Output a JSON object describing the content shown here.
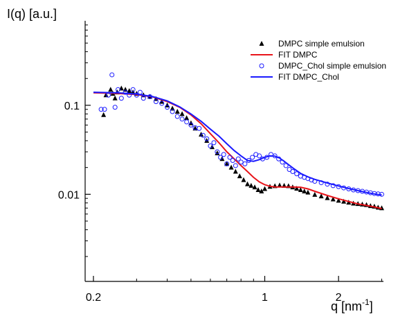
{
  "chart_data": {
    "type": "scatter",
    "title": "",
    "ylabel": "I(q) [a.u.]",
    "xlabel_main": "q [nm",
    "xlabel_exp": "-1",
    "xlabel_close": "]",
    "xscale": "log",
    "yscale": "log",
    "xlim": [
      0.185,
      3.05
    ],
    "ylim": [
      0.00105,
      0.89
    ],
    "grid": false,
    "legend_position": "top-right",
    "x_ticks": [
      {
        "value": 0.2,
        "label": "0.2"
      },
      {
        "value": 1,
        "label": "1"
      },
      {
        "value": 2,
        "label": "2"
      }
    ],
    "y_ticks": [
      {
        "value": 0.1,
        "label": "0.1"
      },
      {
        "value": 0.01,
        "label": "0.01"
      }
    ],
    "series": [
      {
        "name": "DMPC simple emulsion",
        "kind": "markers",
        "marker": "triangle",
        "color": "#000000",
        "x": [
          0.22,
          0.225,
          0.235,
          0.24,
          0.245,
          0.25,
          0.26,
          0.27,
          0.28,
          0.29,
          0.3,
          0.32,
          0.34,
          0.36,
          0.38,
          0.4,
          0.42,
          0.44,
          0.46,
          0.48,
          0.5,
          0.52,
          0.55,
          0.58,
          0.61,
          0.64,
          0.67,
          0.7,
          0.73,
          0.76,
          0.79,
          0.82,
          0.85,
          0.88,
          0.91,
          0.94,
          0.97,
          1.0,
          1.05,
          1.1,
          1.15,
          1.2,
          1.25,
          1.3,
          1.35,
          1.4,
          1.45,
          1.5,
          1.6,
          1.7,
          1.8,
          1.9,
          2.0,
          2.1,
          2.2,
          2.3,
          2.4,
          2.5,
          2.6,
          2.7,
          2.8,
          2.9,
          3.0
        ],
        "y": [
          0.078,
          0.13,
          0.15,
          0.135,
          0.12,
          0.14,
          0.155,
          0.15,
          0.145,
          0.14,
          0.135,
          0.13,
          0.125,
          0.118,
          0.11,
          0.1,
          0.092,
          0.085,
          0.08,
          0.072,
          0.063,
          0.055,
          0.047,
          0.04,
          0.034,
          0.029,
          0.025,
          0.022,
          0.02,
          0.018,
          0.016,
          0.0145,
          0.013,
          0.0125,
          0.012,
          0.0112,
          0.0108,
          0.0115,
          0.0122,
          0.0124,
          0.0126,
          0.0125,
          0.0124,
          0.012,
          0.0116,
          0.0112,
          0.0108,
          0.0105,
          0.0099,
          0.0095,
          0.0091,
          0.0088,
          0.0085,
          0.0083,
          0.0081,
          0.0079,
          0.0078,
          0.0077,
          0.0076,
          0.0074,
          0.0073,
          0.0071,
          0.007
        ]
      },
      {
        "name": "FIT DMPC",
        "kind": "line",
        "color": "#e8141a",
        "x": [
          0.2,
          0.25,
          0.3,
          0.35,
          0.4,
          0.45,
          0.5,
          0.55,
          0.6,
          0.65,
          0.7,
          0.75,
          0.8,
          0.85,
          0.9,
          0.95,
          1.0,
          1.05,
          1.1,
          1.2,
          1.3,
          1.4,
          1.5,
          1.6,
          1.8,
          2.0,
          2.2,
          2.4,
          2.6,
          2.8,
          3.0
        ],
        "y": [
          0.138,
          0.136,
          0.132,
          0.124,
          0.11,
          0.095,
          0.078,
          0.062,
          0.048,
          0.038,
          0.03,
          0.025,
          0.021,
          0.018,
          0.0155,
          0.0138,
          0.0128,
          0.0123,
          0.0121,
          0.0121,
          0.0121,
          0.012,
          0.0115,
          0.0108,
          0.0097,
          0.0089,
          0.0083,
          0.0078,
          0.0075,
          0.0072,
          0.0069
        ]
      },
      {
        "name": "DMPC_Chol simple emulsion",
        "kind": "markers",
        "marker": "open-circle",
        "color": "#1a1aff",
        "x": [
          0.215,
          0.222,
          0.23,
          0.238,
          0.245,
          0.252,
          0.26,
          0.27,
          0.28,
          0.29,
          0.3,
          0.31,
          0.32,
          0.34,
          0.36,
          0.38,
          0.4,
          0.42,
          0.44,
          0.46,
          0.48,
          0.5,
          0.52,
          0.54,
          0.56,
          0.58,
          0.6,
          0.62,
          0.64,
          0.66,
          0.68,
          0.7,
          0.72,
          0.74,
          0.76,
          0.78,
          0.8,
          0.83,
          0.86,
          0.89,
          0.92,
          0.95,
          0.98,
          1.02,
          1.06,
          1.1,
          1.14,
          1.18,
          1.22,
          1.26,
          1.3,
          1.35,
          1.4,
          1.45,
          1.5,
          1.55,
          1.6,
          1.7,
          1.8,
          1.9,
          2.0,
          2.1,
          2.2,
          2.3,
          2.4,
          2.5,
          2.6,
          2.7,
          2.8,
          2.9,
          3.0
        ],
        "y": [
          0.09,
          0.09,
          0.13,
          0.22,
          0.095,
          0.15,
          0.12,
          0.14,
          0.13,
          0.15,
          0.13,
          0.14,
          0.12,
          0.125,
          0.11,
          0.105,
          0.095,
          0.085,
          0.075,
          0.07,
          0.065,
          0.06,
          0.056,
          0.055,
          0.046,
          0.042,
          0.035,
          0.038,
          0.03,
          0.026,
          0.028,
          0.022,
          0.026,
          0.024,
          0.021,
          0.025,
          0.023,
          0.022,
          0.024,
          0.026,
          0.028,
          0.027,
          0.025,
          0.026,
          0.028,
          0.027,
          0.025,
          0.023,
          0.021,
          0.019,
          0.018,
          0.017,
          0.016,
          0.0155,
          0.015,
          0.0145,
          0.014,
          0.0135,
          0.013,
          0.0125,
          0.0122,
          0.0118,
          0.0115,
          0.0112,
          0.011,
          0.0108,
          0.0106,
          0.0104,
          0.0102,
          0.0101,
          0.01
        ]
      },
      {
        "name": "FIT DMPC_Chol",
        "kind": "line",
        "color": "#1a1aff",
        "x": [
          0.2,
          0.25,
          0.3,
          0.35,
          0.4,
          0.45,
          0.5,
          0.55,
          0.6,
          0.65,
          0.7,
          0.75,
          0.8,
          0.85,
          0.9,
          0.95,
          1.0,
          1.05,
          1.1,
          1.15,
          1.2,
          1.3,
          1.4,
          1.5,
          1.6,
          1.8,
          2.0,
          2.2,
          2.4,
          2.6,
          2.8,
          3.0
        ],
        "y": [
          0.14,
          0.138,
          0.134,
          0.125,
          0.112,
          0.096,
          0.08,
          0.066,
          0.054,
          0.045,
          0.037,
          0.031,
          0.027,
          0.024,
          0.0235,
          0.0245,
          0.026,
          0.027,
          0.0268,
          0.0255,
          0.0235,
          0.0198,
          0.0172,
          0.0157,
          0.0147,
          0.0134,
          0.0124,
          0.0116,
          0.011,
          0.0105,
          0.0101,
          0.0098
        ]
      }
    ]
  }
}
